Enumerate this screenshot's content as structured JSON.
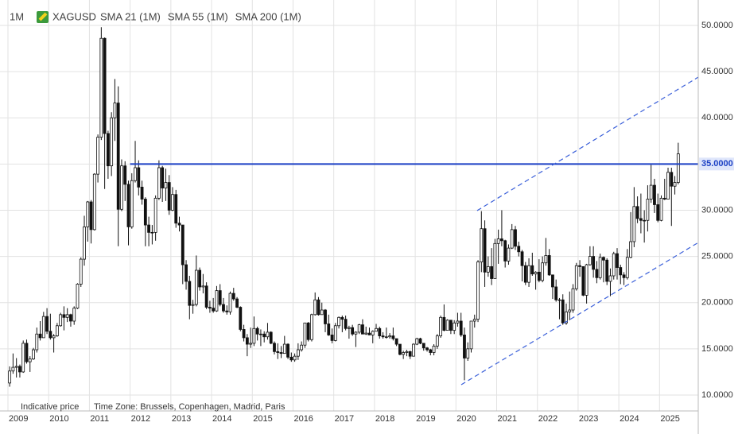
{
  "chart_data": {
    "type": "candlestick",
    "timeframe": "1M",
    "title": "XAGUSD",
    "indicators": [
      "SMA 21 (1M)",
      "SMA 55 (1M)",
      "SMA 200 (1M)"
    ],
    "notes": [
      "Indicative price",
      "Time Zone: Brussels, Copenhagen, Madrid, Paris"
    ],
    "up_color": "#ffffff",
    "down_color": "#111111",
    "grid": true,
    "xlim": [
      2009,
      2025.95
    ],
    "xticks": [
      2009,
      2010,
      2011,
      2012,
      2013,
      2014,
      2015,
      2016,
      2017,
      2018,
      2019,
      2020,
      2021,
      2022,
      2023,
      2024,
      2025
    ],
    "ylim": [
      8.45,
      52.06
    ],
    "yticks": [
      {
        "value": 10,
        "label": "10.0000"
      },
      {
        "value": 15,
        "label": "15.0000"
      },
      {
        "value": 20,
        "label": "20.0000"
      },
      {
        "value": 25,
        "label": "25.0000"
      },
      {
        "value": 30,
        "label": "30.0000"
      },
      {
        "value": 35,
        "label": "35.0000"
      },
      {
        "value": 40,
        "label": "40.0000"
      },
      {
        "value": 45,
        "label": "45.0000"
      },
      {
        "value": 50,
        "label": "50.0000"
      }
    ],
    "hline": {
      "value": 35,
      "label": "35.0000",
      "color": "#1a3fc4"
    },
    "trendline_color": "#3a5fd9",
    "trendlines": [
      {
        "x": [
          2020.13,
          2025.95
        ],
        "y": [
          11.12,
          26.5
        ]
      },
      {
        "x": [
          2020.52,
          2025.95
        ],
        "y": [
          29.96,
          44.4
        ]
      }
    ],
    "open": [
      11.3,
      12.6,
      13.0,
      13.1,
      12.5,
      15.6,
      13.6,
      13.9,
      14.9,
      16.6,
      16.2,
      18.5,
      16.9,
      16.2,
      16.4,
      17.5,
      18.7,
      18.4,
      18.7,
      18.0,
      19.4,
      22.0,
      24.7,
      28.2,
      30.9,
      27.9,
      33.9,
      37.9,
      48.6,
      38.3,
      34.8,
      40.0,
      41.6,
      30.1,
      34.8,
      32.8,
      28.2,
      33.2,
      34.6,
      32.5,
      31.2,
      28.4,
      27.6,
      27.6,
      31.3,
      34.6,
      32.4,
      33.0,
      30.0,
      31.7,
      28.6,
      28.4,
      24.1,
      22.3,
      19.7,
      19.8,
      23.5,
      21.7,
      21.8,
      19.5,
      19.4,
      19.1,
      21.3,
      19.8,
      19.1,
      19.0,
      21.0,
      20.4,
      19.5,
      17.1,
      16.2,
      15.5,
      15.6,
      17.2,
      16.6,
      16.6,
      16.3,
      16.8,
      15.6,
      14.7,
      14.6,
      14.5,
      15.5,
      14.1,
      13.8,
      14.2,
      14.9,
      15.4,
      17.8,
      16.0,
      18.7,
      20.3,
      18.7,
      19.2,
      17.7,
      16.5,
      15.9,
      17.5,
      18.4,
      18.2,
      17.2,
      17.3,
      16.6,
      16.8,
      17.6,
      16.6,
      16.7,
      16.5,
      16.9,
      17.2,
      16.4,
      16.3,
      16.3,
      16.4,
      16.1,
      15.5,
      14.4,
      14.6,
      14.7,
      14.2,
      15.5,
      16.1,
      15.6,
      15.1,
      14.9,
      14.6,
      15.3,
      16.4,
      18.4,
      17.0,
      18.1,
      17.0,
      17.8,
      18.0,
      16.5,
      14.0,
      15.0,
      18.0,
      18.2,
      24.4,
      28.0,
      23.3,
      23.9,
      22.6,
      26.4,
      26.9,
      26.7,
      24.5,
      25.9,
      27.9,
      26.1,
      25.5,
      24.0,
      22.2,
      24.0,
      23.1,
      23.3,
      22.4,
      24.3,
      25.1,
      23.0,
      21.7,
      20.3,
      20.3,
      17.8,
      19.0,
      19.2,
      21.5,
      24.0,
      23.9,
      20.8,
      24.1,
      25.0,
      23.6,
      22.7,
      24.9,
      24.6,
      22.3,
      22.9,
      25.3,
      23.8,
      23.0,
      22.7,
      24.9,
      26.6,
      30.4,
      29.1,
      28.9,
      28.9,
      31.2,
      32.7,
      30.6,
      28.9,
      31.3,
      31.2,
      34.1,
      32.6,
      33.0
    ],
    "high": [
      13.1,
      14.5,
      14.0,
      13.3,
      15.9,
      16.0,
      14.2,
      15.1,
      17.3,
      18.0,
      19.0,
      19.4,
      18.8,
      16.6,
      17.8,
      18.9,
      19.6,
      19.4,
      18.8,
      19.6,
      22.1,
      24.9,
      29.4,
      31.0,
      31.1,
      34.0,
      38.2,
      49.8,
      48.7,
      38.6,
      40.6,
      44.2,
      43.4,
      35.5,
      35.3,
      33.2,
      34.0,
      37.5,
      35.4,
      33.2,
      31.4,
      29.3,
      28.4,
      31.6,
      35.4,
      34.8,
      34.5,
      33.8,
      32.5,
      32.2,
      29.3,
      28.4,
      24.6,
      22.9,
      20.3,
      25.1,
      23.8,
      23.1,
      22.2,
      20.2,
      20.5,
      21.8,
      22.0,
      20.5,
      19.7,
      21.2,
      21.6,
      20.6,
      19.6,
      17.6,
      16.6,
      17.3,
      18.5,
      17.4,
      17.1,
      16.9,
      17.8,
      16.9,
      15.8,
      15.6,
      15.3,
      16.4,
      15.6,
      14.6,
      14.5,
      15.6,
      15.8,
      17.8,
      17.9,
      18.8,
      21.1,
      20.6,
      20.0,
      19.3,
      18.7,
      17.2,
      17.8,
      18.5,
      18.6,
      18.6,
      17.5,
      17.6,
      16.9,
      17.7,
      18.2,
      17.4,
      17.3,
      17.0,
      17.7,
      17.4,
      16.8,
      17.3,
      16.7,
      17.3,
      16.1,
      15.5,
      14.8,
      14.9,
      14.8,
      15.6,
      16.2,
      16.2,
      15.6,
      15.2,
      15.0,
      15.5,
      16.6,
      18.6,
      19.8,
      18.2,
      18.1,
      18.1,
      18.9,
      18.9,
      17.3,
      15.7,
      18.0,
      18.7,
      24.6,
      29.9,
      28.9,
      25.0,
      25.9,
      26.9,
      27.9,
      30.0,
      26.8,
      26.3,
      28.5,
      28.3,
      26.6,
      25.7,
      24.4,
      24.8,
      25.4,
      23.4,
      24.7,
      25.0,
      27.0,
      25.8,
      23.0,
      22.5,
      20.5,
      20.9,
      19.9,
      21.2,
      22.0,
      24.3,
      24.6,
      23.9,
      24.2,
      26.1,
      26.1,
      24.5,
      25.3,
      25.0,
      24.8,
      23.7,
      25.5,
      25.9,
      24.1,
      23.3,
      25.8,
      29.8,
      32.5,
      31.5,
      31.8,
      30.0,
      32.7,
      34.9,
      33.4,
      31.8,
      31.6,
      33.4,
      34.6,
      34.6,
      33.7,
      37.3
    ],
    "low": [
      10.9,
      12.3,
      11.9,
      11.9,
      12.4,
      13.4,
      12.5,
      13.8,
      14.6,
      15.9,
      16.2,
      16.6,
      16.0,
      14.6,
      16.3,
      17.4,
      17.0,
      17.9,
      17.4,
      17.6,
      19.3,
      21.7,
      24.0,
      26.6,
      26.4,
      27.8,
      33.0,
      37.6,
      32.3,
      33.4,
      33.7,
      37.5,
      26.1,
      29.9,
      31.0,
      26.2,
      28.0,
      33.0,
      31.6,
      30.6,
      26.1,
      26.1,
      26.3,
      26.7,
      31.1,
      30.9,
      31.0,
      29.5,
      29.9,
      28.1,
      27.7,
      22.0,
      21.4,
      18.2,
      18.8,
      19.6,
      21.3,
      21.0,
      19.3,
      18.9,
      18.9,
      19.0,
      19.6,
      18.9,
      18.7,
      18.7,
      20.2,
      19.4,
      16.9,
      15.8,
      14.2,
      15.1,
      15.3,
      15.9,
      15.3,
      15.7,
      16.0,
      15.5,
      14.4,
      13.9,
      14.0,
      14.5,
      13.9,
      13.6,
      13.6,
      13.8,
      14.7,
      15.1,
      15.8,
      15.8,
      18.6,
      18.6,
      18.7,
      16.8,
      16.4,
      15.6,
      15.8,
      17.2,
      16.8,
      17.0,
      16.1,
      16.4,
      15.2,
      16.6,
      16.6,
      16.5,
      16.5,
      15.6,
      16.9,
      16.1,
      16.1,
      16.1,
      16.1,
      15.9,
      15.3,
      14.3,
      13.9,
      14.2,
      13.9,
      14.2,
      15.4,
      15.5,
      14.8,
      14.7,
      14.3,
      14.3,
      15.0,
      16.2,
      16.9,
      17.0,
      16.6,
      16.6,
      17.4,
      16.3,
      11.6,
      13.7,
      14.6,
      17.3,
      17.9,
      23.3,
      21.7,
      22.8,
      21.9,
      22.6,
      24.2,
      26.1,
      23.8,
      24.1,
      25.8,
      25.7,
      25.0,
      22.3,
      21.9,
      21.7,
      22.9,
      21.4,
      22.2,
      22.2,
      24.0,
      22.9,
      20.4,
      20.1,
      18.2,
      17.6,
      17.6,
      18.1,
      18.9,
      21.3,
      22.8,
      20.7,
      19.9,
      24.0,
      22.7,
      22.1,
      22.5,
      22.2,
      21.9,
      20.7,
      22.5,
      22.5,
      22.0,
      21.9,
      22.5,
      24.8,
      26.0,
      28.6,
      27.5,
      26.5,
      27.7,
      30.8,
      29.7,
      28.7,
      28.8,
      31.1,
      31.2,
      28.3,
      31.7,
      32.8
    ],
    "close": [
      12.6,
      13.0,
      13.1,
      12.5,
      15.6,
      13.6,
      13.9,
      14.9,
      16.6,
      16.2,
      18.5,
      16.9,
      16.2,
      16.4,
      17.5,
      18.7,
      18.4,
      18.7,
      18.0,
      19.4,
      22.0,
      24.7,
      28.2,
      30.9,
      27.9,
      33.9,
      37.9,
      48.6,
      38.3,
      34.8,
      40.0,
      41.6,
      30.1,
      34.8,
      32.8,
      28.2,
      33.2,
      34.6,
      32.5,
      31.2,
      28.4,
      27.6,
      27.6,
      31.3,
      34.6,
      32.4,
      33.0,
      30.0,
      31.7,
      28.6,
      28.4,
      24.1,
      22.3,
      19.7,
      19.8,
      23.5,
      21.7,
      21.8,
      19.5,
      19.4,
      19.1,
      21.3,
      19.8,
      19.1,
      19.0,
      21.0,
      20.4,
      19.5,
      17.1,
      16.2,
      15.5,
      15.6,
      17.2,
      16.6,
      16.6,
      16.3,
      16.8,
      15.6,
      14.7,
      14.6,
      14.5,
      15.5,
      14.1,
      13.8,
      14.2,
      14.9,
      15.4,
      17.8,
      16.0,
      18.7,
      20.3,
      18.7,
      19.2,
      17.7,
      16.5,
      15.9,
      17.5,
      18.4,
      18.2,
      17.2,
      17.3,
      16.6,
      16.8,
      17.6,
      16.6,
      16.7,
      16.5,
      16.9,
      17.2,
      16.4,
      16.3,
      16.3,
      16.4,
      16.1,
      15.5,
      14.4,
      14.6,
      14.7,
      14.2,
      15.5,
      16.1,
      15.6,
      15.1,
      14.9,
      14.6,
      15.3,
      16.4,
      18.4,
      17.0,
      18.1,
      17.0,
      17.8,
      18.0,
      16.5,
      14.0,
      15.0,
      18.0,
      18.2,
      24.4,
      28.0,
      23.3,
      23.9,
      22.6,
      26.4,
      26.9,
      26.7,
      24.5,
      25.9,
      27.9,
      26.1,
      25.5,
      24.0,
      22.2,
      24.0,
      23.1,
      23.3,
      22.4,
      24.3,
      25.1,
      23.0,
      21.7,
      20.3,
      20.3,
      17.8,
      19.0,
      19.2,
      21.5,
      24.0,
      23.9,
      20.8,
      24.1,
      25.0,
      23.6,
      22.7,
      24.9,
      24.6,
      22.3,
      22.9,
      25.3,
      23.8,
      23.0,
      22.7,
      24.9,
      26.6,
      30.4,
      29.1,
      28.9,
      28.9,
      31.2,
      32.7,
      30.6,
      28.9,
      31.3,
      31.2,
      34.1,
      32.6,
      33.0,
      36.1
    ]
  }
}
